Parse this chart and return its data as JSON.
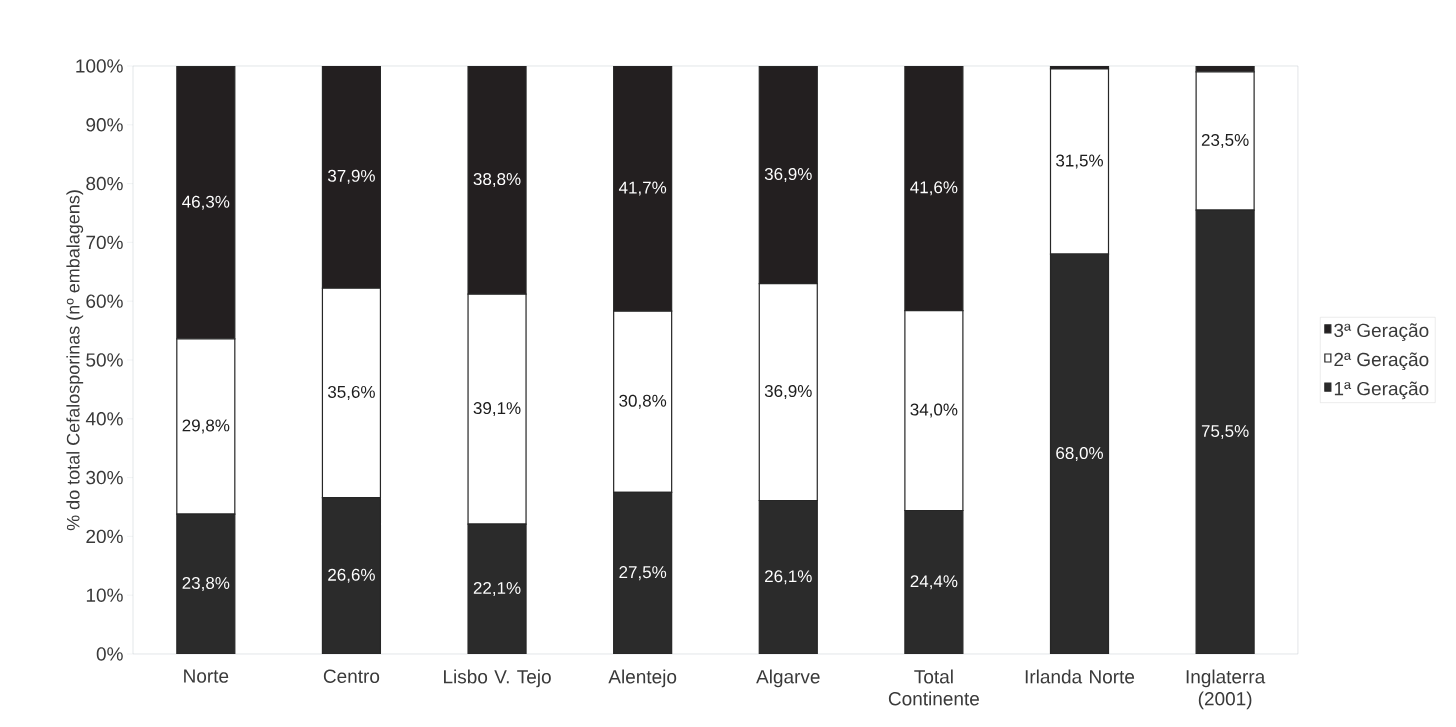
{
  "chart_data": {
    "type": "bar",
    "stacked": true,
    "ylabel": "% do total Cefalosporinas (nº embalagens)",
    "categories": [
      "Norte",
      "Centro",
      "Lisbo V. Tejo",
      "Alentejo",
      "Algarve",
      "Total Continente",
      "Irlanda Norte",
      "Inglaterra (2001)"
    ],
    "series": [
      {
        "name": "1ª Geração",
        "color": "#2b2b2b",
        "values": [
          23.8,
          26.6,
          22.1,
          27.5,
          26.1,
          24.4,
          68.0,
          75.5
        ],
        "value_labels": [
          "23,8%",
          "26,6%",
          "22,1%",
          "27,5%",
          "26,1%",
          "24,4%",
          "68,0%",
          "75,5%"
        ]
      },
      {
        "name": "2ª Geração",
        "color": "#ffffff",
        "values": [
          29.8,
          35.6,
          39.1,
          30.8,
          36.9,
          34.0,
          31.5,
          23.5
        ],
        "value_labels": [
          "29,8%",
          "35,6%",
          "39,1%",
          "30,8%",
          "36,9%",
          "34,0%",
          "31,5%",
          "23,5%"
        ]
      },
      {
        "name": "3ª Geração",
        "color": "#231f20",
        "values": [
          46.3,
          37.9,
          38.8,
          41.7,
          36.9,
          41.6,
          0.5,
          1.0
        ],
        "value_labels": [
          "46,3%",
          "37,9%",
          "38,8%",
          "41,7%",
          "36,9%",
          "41,6%",
          null,
          null
        ]
      }
    ],
    "ylim": [
      0,
      100
    ],
    "yticks": [
      {
        "value": 0,
        "label": "0%"
      },
      {
        "value": 10,
        "label": "10%"
      },
      {
        "value": 20,
        "label": "20%"
      },
      {
        "value": 30,
        "label": "30%"
      },
      {
        "value": 40,
        "label": "40%"
      },
      {
        "value": 50,
        "label": "50%"
      },
      {
        "value": 60,
        "label": "60%"
      },
      {
        "value": 70,
        "label": "70%"
      },
      {
        "value": 80,
        "label": "80%"
      },
      {
        "value": 90,
        "label": "90%"
      },
      {
        "value": 100,
        "label": "100%"
      }
    ],
    "legend": "right",
    "grid": false
  }
}
